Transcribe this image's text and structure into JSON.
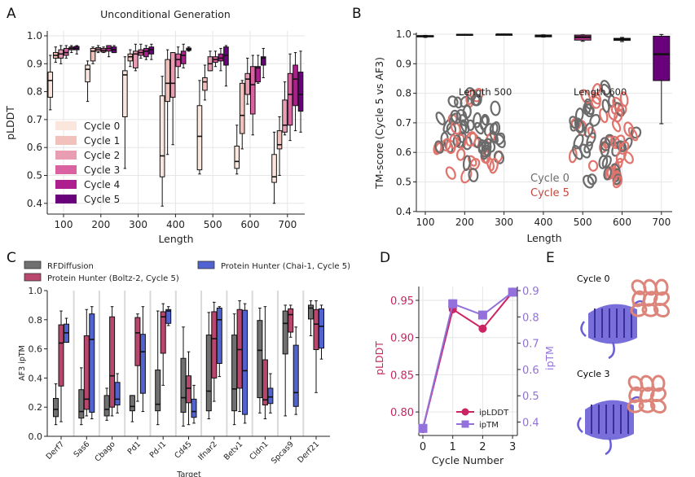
{
  "panels": {
    "A": "A",
    "B": "B",
    "C": "C",
    "D": "D",
    "E": "E"
  },
  "colors": {
    "cycles": [
      "#fbe6dd",
      "#f3c1bb",
      "#e99db3",
      "#db62a0",
      "#ad1f8e",
      "#68017a"
    ],
    "rfdiffusion": "#707070",
    "boltz": "#b8466d",
    "chai": "#5063d1",
    "iplddt": "#cc2462",
    "iptm": "#9370db",
    "protein_gray": "#6b6b6b",
    "protein_red": "#e0736b",
    "binder_blue": "#6a5fd6",
    "target_salmon": "#dd857a"
  },
  "annotations_B": {
    "length500": "Length 500",
    "length600": "Length 600",
    "cycle0": "Cycle 0",
    "cycle5": "Cycle 5"
  },
  "panel_E": {
    "top_label": "Cycle 0",
    "bottom_label": "Cycle 3"
  },
  "chart_data": [
    {
      "id": "A",
      "type": "box",
      "title": "Unconditional Generation",
      "xlabel": "Length",
      "ylabel": "pLDDT",
      "ylim": [
        0.36,
        1.01
      ],
      "yticks": [
        "1.0",
        "0.9",
        "0.8",
        "0.7",
        "0.6",
        "0.5",
        "0.4"
      ],
      "categories": [
        "100",
        "200",
        "300",
        "400",
        "500",
        "600",
        "700"
      ],
      "legend_position": "lower-left",
      "box_fields": [
        "median",
        "q1",
        "q3",
        "whisker_low",
        "whisker_high"
      ],
      "series": [
        {
          "name": "Cycle 0",
          "boxes": [
            [
              0.84,
              0.78,
              0.87,
              0.735,
              0.93
            ],
            [
              0.88,
              0.835,
              0.895,
              0.765,
              0.91
            ],
            [
              0.86,
              0.71,
              0.875,
              0.525,
              0.925
            ],
            [
              0.57,
              0.495,
              0.785,
              0.39,
              0.855
            ],
            [
              0.64,
              0.52,
              0.75,
              0.505,
              0.84
            ],
            [
              0.55,
              0.525,
              0.605,
              0.505,
              0.68
            ],
            [
              0.495,
              0.475,
              0.575,
              0.4,
              0.655
            ]
          ]
        },
        {
          "name": "Cycle 1",
          "boxes": [
            [
              0.93,
              0.92,
              0.94,
              0.905,
              0.96
            ],
            [
              0.945,
              0.91,
              0.955,
              0.9,
              0.96
            ],
            [
              0.925,
              0.91,
              0.935,
              0.89,
              0.95
            ],
            [
              0.83,
              0.765,
              0.915,
              0.575,
              0.95
            ],
            [
              0.835,
              0.805,
              0.85,
              0.77,
              0.895
            ],
            [
              0.715,
              0.65,
              0.83,
              0.595,
              0.84
            ],
            [
              0.61,
              0.595,
              0.66,
              0.5,
              0.71
            ]
          ]
        },
        {
          "name": "Cycle 2",
          "boxes": [
            [
              0.935,
              0.92,
              0.95,
              0.9,
              0.965
            ],
            [
              0.952,
              0.945,
              0.958,
              0.94,
              0.965
            ],
            [
              0.935,
              0.885,
              0.945,
              0.875,
              0.97
            ],
            [
              0.83,
              0.78,
              0.94,
              0.61,
              0.94
            ],
            [
              0.9,
              0.875,
              0.925,
              0.875,
              0.945
            ],
            [
              0.845,
              0.79,
              0.865,
              0.755,
              0.92
            ],
            [
              0.68,
              0.655,
              0.77,
              0.645,
              0.835
            ]
          ]
        },
        {
          "name": "Cycle 3",
          "boxes": [
            [
              0.94,
              0.93,
              0.955,
              0.92,
              0.965
            ],
            [
              0.948,
              0.942,
              0.955,
              0.94,
              0.96
            ],
            [
              0.94,
              0.93,
              0.95,
              0.92,
              0.97
            ],
            [
              0.915,
              0.89,
              0.935,
              0.85,
              0.96
            ],
            [
              0.915,
              0.905,
              0.925,
              0.89,
              0.945
            ],
            [
              0.825,
              0.72,
              0.89,
              0.645,
              0.93
            ],
            [
              0.79,
              0.68,
              0.865,
              0.625,
              0.935
            ]
          ]
        },
        {
          "name": "Cycle 4",
          "boxes": [
            [
              0.955,
              0.95,
              0.96,
              0.94,
              0.965
            ],
            [
              0.955,
              0.945,
              0.965,
              0.925,
              0.965
            ],
            [
              0.945,
              0.925,
              0.955,
              0.915,
              0.965
            ],
            [
              0.93,
              0.9,
              0.945,
              0.885,
              0.97
            ],
            [
              0.92,
              0.91,
              0.935,
              0.875,
              0.955
            ],
            [
              0.885,
              0.835,
              0.89,
              0.83,
              0.93
            ],
            [
              0.845,
              0.75,
              0.895,
              0.66,
              0.94
            ]
          ]
        },
        {
          "name": "Cycle 5",
          "boxes": [
            [
              0.955,
              0.95,
              0.962,
              0.935,
              0.965
            ],
            [
              0.95,
              0.94,
              0.96,
              0.94,
              0.965
            ],
            [
              0.95,
              0.935,
              0.96,
              0.915,
              0.97
            ],
            [
              0.952,
              0.948,
              0.956,
              0.945,
              0.96
            ],
            [
              0.93,
              0.895,
              0.96,
              0.82,
              0.965
            ],
            [
              0.92,
              0.895,
              0.925,
              0.85,
              0.955
            ],
            [
              0.79,
              0.73,
              0.87,
              0.655,
              0.945
            ]
          ]
        }
      ]
    },
    {
      "id": "B",
      "type": "box",
      "xlabel": "Length",
      "ylabel": "TM-score (Cycle 5 vs AF3)",
      "ylim": [
        0.4,
        1.0
      ],
      "yticks": [
        "1.0",
        "0.9",
        "0.8",
        "0.7",
        "0.6",
        "0.5",
        "0.4"
      ],
      "categories": [
        "100",
        "200",
        "300",
        "400",
        "500",
        "600",
        "700"
      ],
      "box_fields": [
        "median",
        "q1",
        "q3",
        "whisker_low",
        "whisker_high"
      ],
      "box_colors": [
        "#3a3a3a",
        "#3a3a3a",
        "#3a3a3a",
        "#3a3a3a",
        "#c0308f",
        "#4a4a4a",
        "#68017a"
      ],
      "boxes": [
        [
          0.993,
          0.991,
          0.995,
          0.989,
          0.996
        ],
        [
          0.998,
          0.997,
          0.999,
          0.997,
          0.999
        ],
        [
          0.999,
          0.998,
          0.999,
          0.998,
          0.999
        ],
        [
          0.994,
          0.991,
          0.997,
          0.99,
          0.998
        ],
        [
          0.99,
          0.98,
          0.997,
          0.976,
          0.998
        ],
        [
          0.982,
          0.979,
          0.986,
          0.975,
          0.989
        ],
        [
          0.932,
          0.843,
          0.993,
          0.697,
          0.999
        ]
      ]
    },
    {
      "id": "C",
      "type": "box",
      "xlabel": "Target",
      "ylabel": "AF3 ipTM",
      "ylim": [
        0.0,
        1.0
      ],
      "yticks": [
        "1.0",
        "0.8",
        "0.6",
        "0.4",
        "0.2",
        "0.0"
      ],
      "categories": [
        "Derf7",
        "Sas6",
        "Cbago",
        "Pd1",
        "Pd-l1",
        "Cd45",
        "Ifnar2",
        "Betv1",
        "Cldn1",
        "Spcas9",
        "Derf21"
      ],
      "legend_position": "top",
      "box_fields": [
        "median",
        "q1",
        "q3",
        "whisker_low",
        "whisker_high"
      ],
      "series": [
        {
          "name": "RFDiffusion",
          "boxes": [
            [
              0.185,
              0.135,
              0.26,
              0.08,
              0.36
            ],
            [
              0.17,
              0.125,
              0.32,
              0.08,
              0.47
            ],
            [
              0.185,
              0.14,
              0.28,
              0.11,
              0.33
            ],
            [
              0.205,
              0.175,
              0.28,
              0.1,
              0.28
            ],
            [
              0.22,
              0.175,
              0.455,
              0.08,
              0.86
            ],
            [
              0.265,
              0.165,
              0.535,
              0.07,
              0.75
            ],
            [
              0.31,
              0.175,
              0.695,
              0.12,
              0.85
            ],
            [
              0.325,
              0.175,
              0.695,
              0.08,
              0.84
            ],
            [
              0.59,
              0.265,
              0.795,
              0.16,
              0.88
            ],
            [
              0.775,
              0.565,
              0.86,
              0.14,
              0.9
            ],
            [
              0.88,
              0.805,
              0.9,
              0.69,
              0.93
            ]
          ]
        },
        {
          "name": "Protein Hunter (Boltz-2, Cycle 5)",
          "boxes": [
            [
              0.64,
              0.345,
              0.765,
              0.1,
              0.86
            ],
            [
              0.255,
              0.185,
              0.69,
              0.14,
              0.87
            ],
            [
              0.415,
              0.2,
              0.82,
              0.14,
              0.89
            ],
            [
              0.71,
              0.485,
              0.815,
              0.24,
              0.84
            ],
            [
              0.82,
              0.57,
              0.855,
              0.35,
              0.91
            ],
            [
              0.33,
              0.23,
              0.415,
              0.08,
              0.58
            ],
            [
              0.67,
              0.4,
              0.855,
              0.24,
              0.92
            ],
            [
              0.595,
              0.33,
              0.87,
              0.17,
              0.93
            ],
            [
              0.25,
              0.215,
              0.525,
              0.12,
              0.89
            ],
            [
              0.835,
              0.715,
              0.875,
              0.68,
              0.9
            ],
            [
              0.77,
              0.595,
              0.87,
              0.3,
              0.93
            ]
          ]
        },
        {
          "name": "Protein Hunter (Chai-1, Cycle 5)",
          "boxes": [
            [
              0.71,
              0.645,
              0.77,
              0.645,
              0.81
            ],
            [
              0.665,
              0.165,
              0.84,
              0.12,
              0.89
            ],
            [
              0.255,
              0.215,
              0.37,
              0.16,
              0.43
            ],
            [
              0.58,
              0.295,
              0.7,
              0.17,
              0.89
            ],
            [
              0.86,
              0.775,
              0.87,
              0.76,
              0.89
            ],
            [
              0.17,
              0.13,
              0.255,
              0.09,
              0.35
            ],
            [
              0.8,
              0.5,
              0.88,
              0.41,
              0.89
            ],
            [
              0.45,
              0.15,
              0.865,
              0.09,
              0.91
            ],
            [
              0.27,
              0.225,
              0.33,
              0.16,
              0.43
            ],
            [
              0.3,
              0.205,
              0.625,
              0.15,
              0.75
            ],
            [
              0.755,
              0.605,
              0.875,
              0.53,
              0.9
            ]
          ]
        }
      ]
    },
    {
      "id": "D",
      "type": "line",
      "xlabel": "Cycle Number",
      "ylabel_left": "pLDDT",
      "ylabel_right": "ipTM",
      "x": [
        0,
        1,
        2,
        3
      ],
      "xticks": [
        "0",
        "1",
        "2",
        "3"
      ],
      "ylim_left": [
        0.77,
        0.97
      ],
      "yticks_left": [
        "0.95",
        "0.90",
        "0.85",
        "0.80"
      ],
      "ylim_right": [
        0.35,
        0.92
      ],
      "yticks_right": [
        "0.9",
        "0.8",
        "0.7",
        "0.6",
        "0.5",
        "0.4"
      ],
      "legend_position": "lower-right",
      "series": [
        {
          "name": "ipLDDT",
          "axis": "left",
          "marker": "circle",
          "values": [
            0.777,
            0.938,
            0.912,
            0.961
          ]
        },
        {
          "name": "ipTM",
          "axis": "right",
          "marker": "square",
          "values": [
            0.376,
            0.85,
            0.807,
            0.894
          ]
        }
      ]
    }
  ]
}
